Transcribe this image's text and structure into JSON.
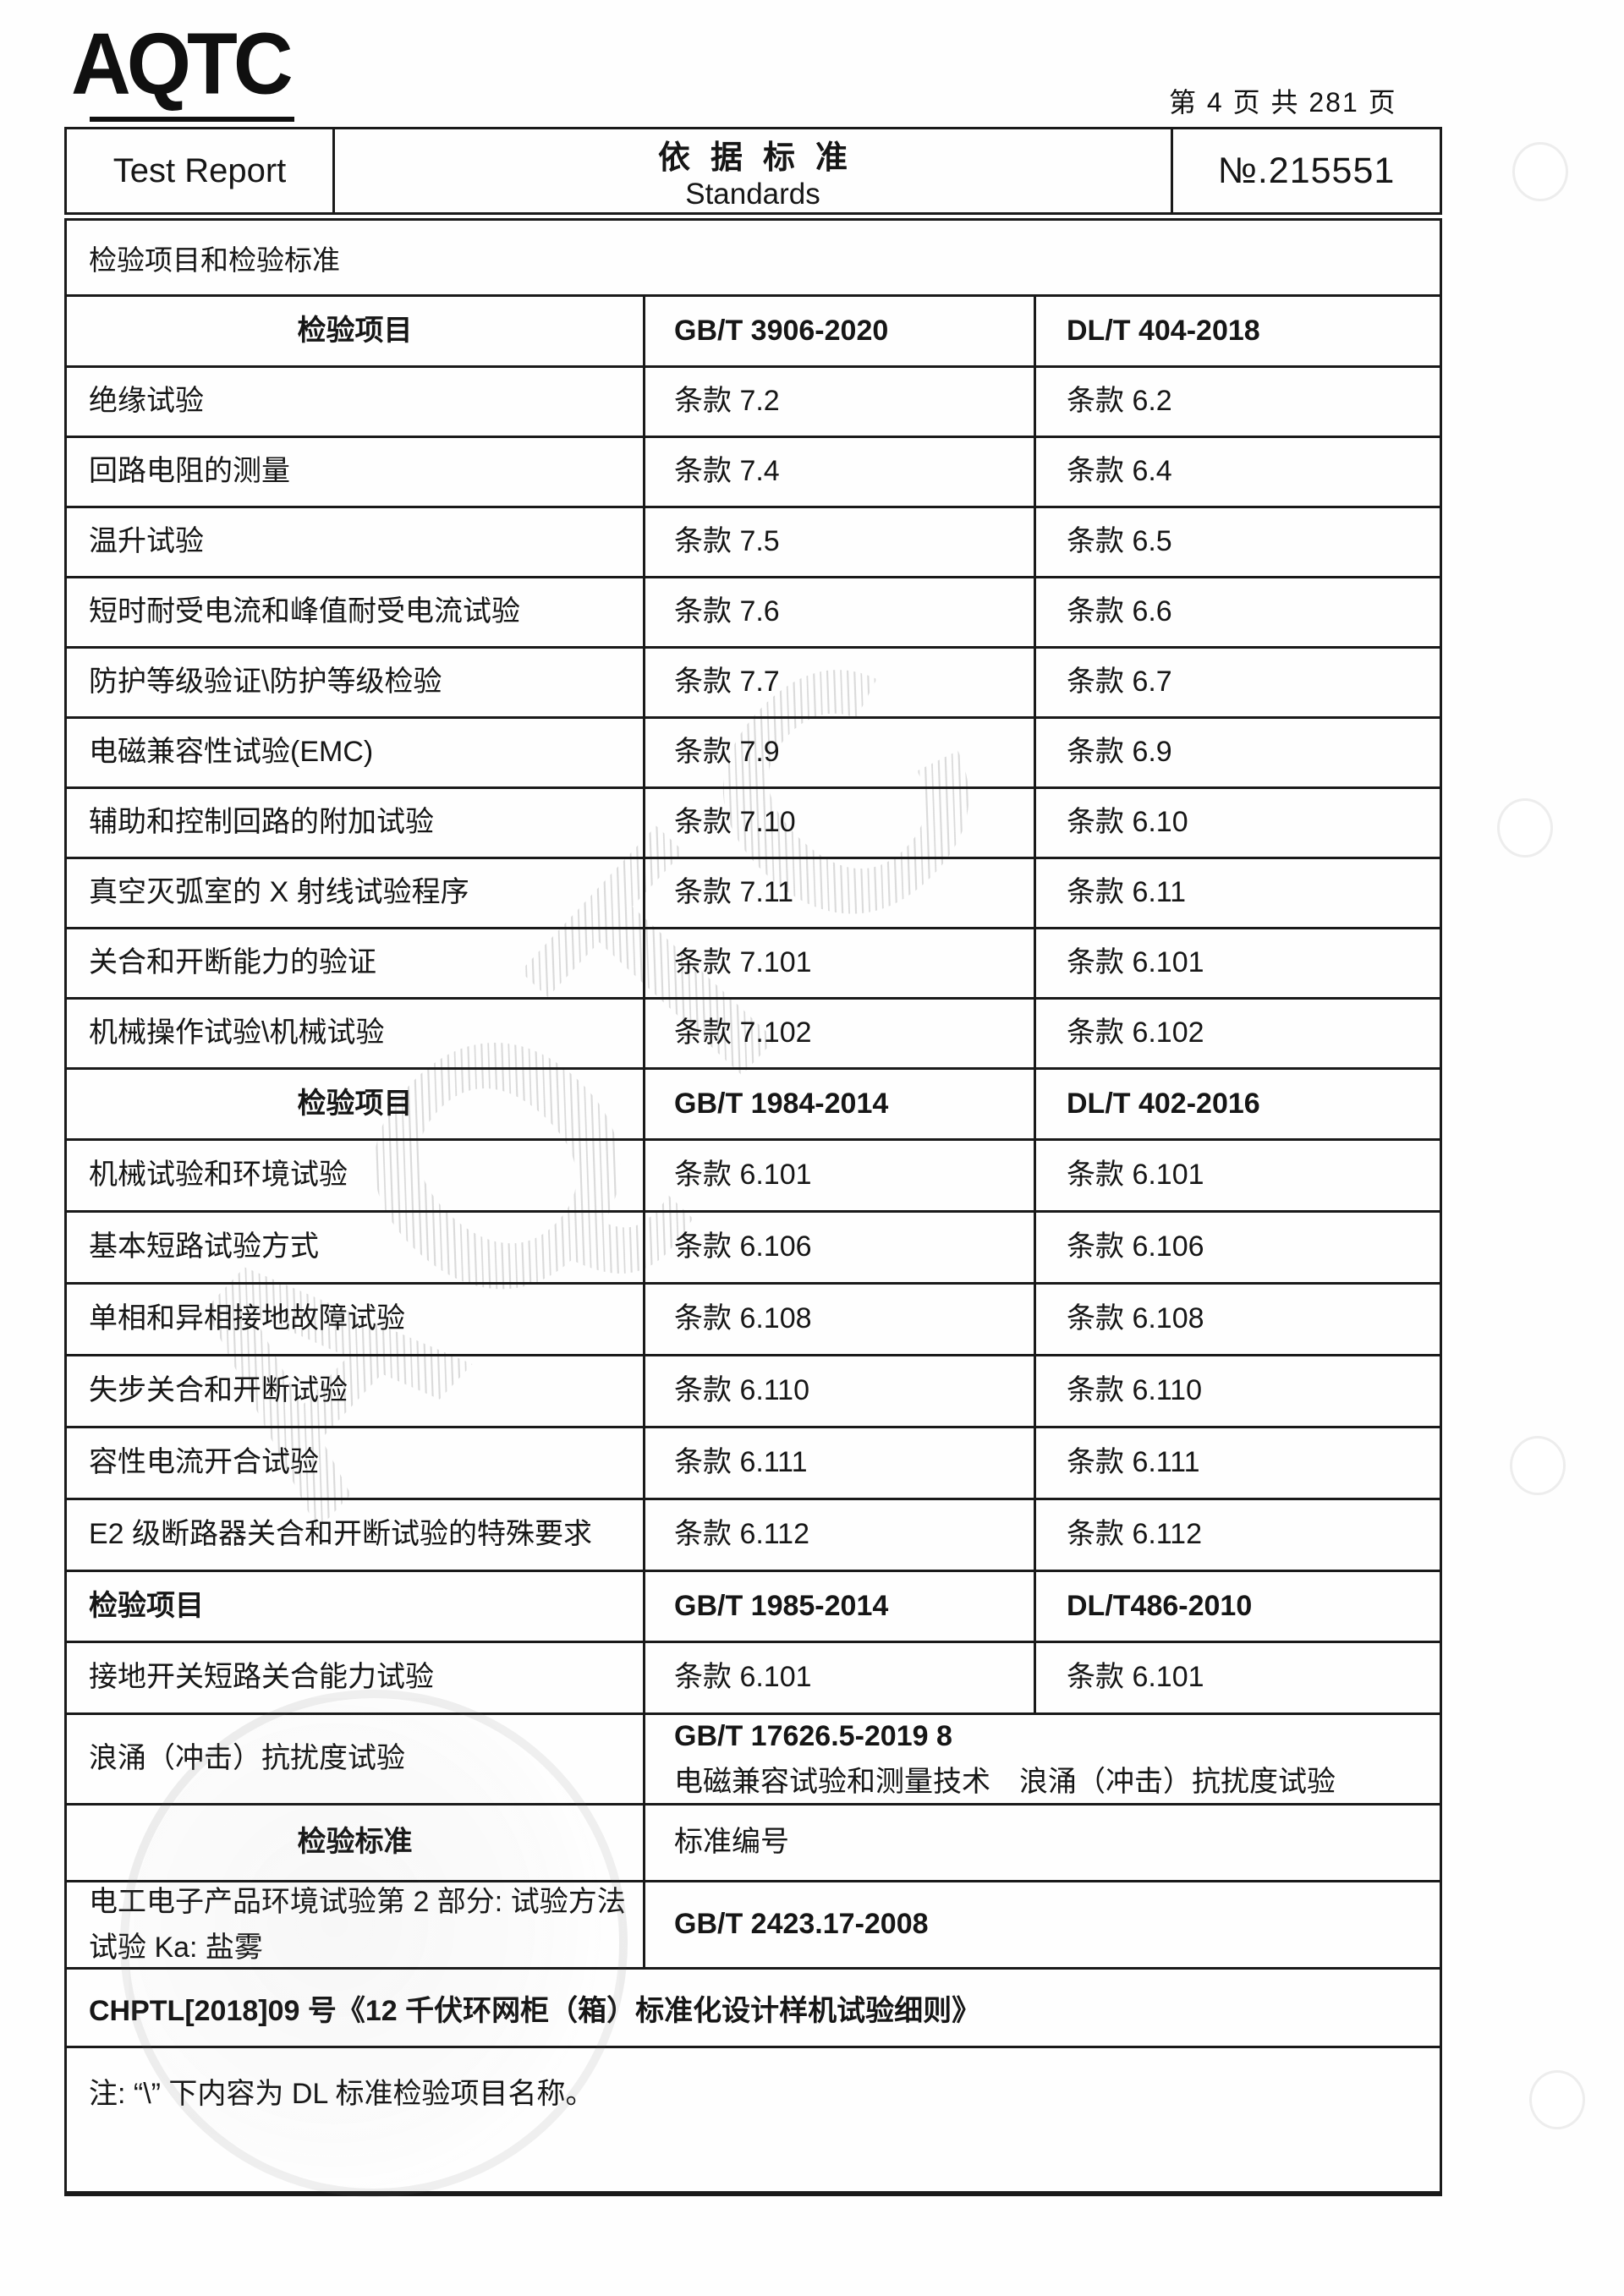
{
  "page": {
    "logo": "AQTC",
    "page_info": "第 4 页 共 281 页"
  },
  "header": {
    "title_left": "Test Report",
    "title_center_cn": "依据标准",
    "title_center_en": "Standards",
    "report_no": "№.215551"
  },
  "section_title": "检验项目和检验标准",
  "watermark": "AQTC",
  "tables": [
    {
      "headers": [
        "检验项目",
        "GB/T 3906-2020",
        "DL/T 404-2018"
      ],
      "rows": [
        [
          "绝缘试验",
          "条款 7.2",
          "条款 6.2"
        ],
        [
          "回路电阻的测量",
          "条款 7.4",
          "条款 6.4"
        ],
        [
          "温升试验",
          "条款 7.5",
          "条款 6.5"
        ],
        [
          "短时耐受电流和峰值耐受电流试验",
          "条款 7.6",
          "条款 6.6"
        ],
        [
          "防护等级验证\\防护等级检验",
          "条款 7.7",
          "条款 6.7"
        ],
        [
          "电磁兼容性试验(EMC)",
          "条款 7.9",
          "条款 6.9"
        ],
        [
          "辅助和控制回路的附加试验",
          "条款 7.10",
          "条款 6.10"
        ],
        [
          "真空灭弧室的 X 射线试验程序",
          "条款 7.11",
          "条款 6.11"
        ],
        [
          "关合和开断能力的验证",
          "条款 7.101",
          "条款 6.101"
        ],
        [
          "机械操作试验\\机械试验",
          "条款 7.102",
          "条款 6.102"
        ]
      ]
    },
    {
      "headers": [
        "检验项目",
        "GB/T 1984-2014",
        "DL/T 402-2016"
      ],
      "rows": [
        [
          "机械试验和环境试验",
          "条款 6.101",
          "条款 6.101"
        ],
        [
          "基本短路试验方式",
          "条款 6.106",
          "条款 6.106"
        ],
        [
          "单相和异相接地故障试验",
          "条款 6.108",
          "条款 6.108"
        ],
        [
          "失步关合和开断试验",
          "条款 6.110",
          "条款 6.110"
        ],
        [
          "容性电流开合试验",
          "条款 6.111",
          "条款 6.111"
        ],
        [
          "E2 级断路器关合和开断试验的特殊要求",
          "条款 6.112",
          "条款 6.112"
        ]
      ]
    },
    {
      "headers": [
        "检验项目",
        "GB/T 1985-2014",
        "DL/T486-2010"
      ],
      "rows": [
        [
          "接地开关短路关合能力试验",
          "条款 6.101",
          "条款 6.101"
        ]
      ]
    }
  ],
  "surge": {
    "label": "浪涌（冲击）抗扰度试验",
    "line1": "GB/T 17626.5-2019 8",
    "line2": "电磁兼容试验和测量技术　浪涌（冲击）抗扰度试验"
  },
  "std_header": {
    "label": "检验标准",
    "value": "标准编号"
  },
  "env": {
    "label_line1": "电工电子产品环境试验第 2 部分: 试验方法",
    "label_line2": "试验 Ka: 盐雾",
    "value": "GB/T 2423.17-2008"
  },
  "chptl": "CHPTL[2018]09 号《12 千伏环网柜（箱）标准化设计样机试验细则》",
  "note": "注: “\\” 下内容为 DL 标准检验项目名称。"
}
